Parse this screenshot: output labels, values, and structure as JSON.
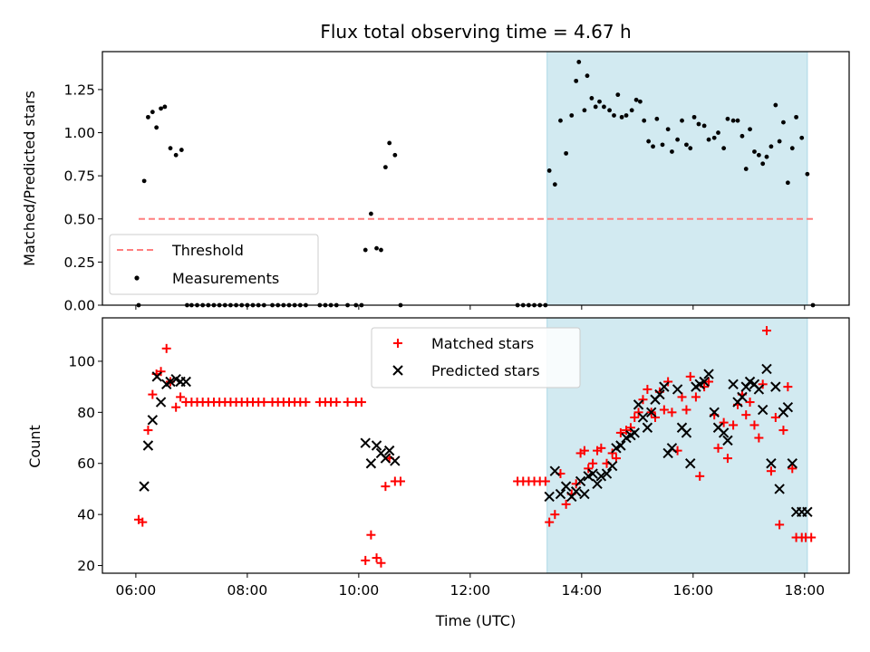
{
  "chart_data": [
    {
      "type": "scatter",
      "title": "Flux total observing time = 4.67 h",
      "xlabel": "",
      "ylabel": "Matched/Predicted stars",
      "x_unit": "UTC hour",
      "xlim": [
        5.4,
        18.8
      ],
      "ylim": [
        0.0,
        1.47
      ],
      "yticks": [
        "0.00",
        "0.25",
        "0.50",
        "0.75",
        "1.00",
        "1.25"
      ],
      "shaded_interval": [
        13.38,
        18.05
      ],
      "shade_color": "#add8e6",
      "threshold": {
        "name": "Threshold",
        "value": 0.5,
        "x": [
          6.05,
          18.15
        ],
        "color": "#ff7f7f",
        "style": "dashed"
      },
      "legend": {
        "placement": "lower-left",
        "entries": [
          "Threshold",
          "Measurements"
        ]
      },
      "series": [
        {
          "name": "Measurements",
          "color": "#000000",
          "x": [
            6.05,
            6.15,
            6.22,
            6.3,
            6.37,
            6.45,
            6.52,
            6.62,
            6.72,
            6.82,
            6.92,
            7.0,
            7.1,
            7.2,
            7.3,
            7.4,
            7.5,
            7.6,
            7.7,
            7.8,
            7.9,
            8.0,
            8.1,
            8.2,
            8.3,
            8.45,
            8.55,
            8.65,
            8.75,
            8.85,
            8.95,
            9.05,
            9.3,
            9.4,
            9.5,
            9.6,
            9.8,
            9.95,
            10.05,
            10.12,
            10.22,
            10.32,
            10.4,
            10.48,
            10.55,
            10.65,
            10.75,
            12.85,
            12.95,
            13.05,
            13.15,
            13.25,
            13.35,
            13.42,
            13.52,
            13.62,
            13.72,
            13.82,
            13.9,
            13.95,
            14.05,
            14.1,
            14.18,
            14.25,
            14.32,
            14.4,
            14.5,
            14.58,
            14.65,
            14.72,
            14.8,
            14.9,
            14.98,
            15.05,
            15.12,
            15.2,
            15.28,
            15.35,
            15.45,
            15.55,
            15.62,
            15.72,
            15.8,
            15.88,
            15.95,
            16.02,
            16.1,
            16.2,
            16.28,
            16.38,
            16.45,
            16.55,
            16.62,
            16.72,
            16.8,
            16.88,
            16.95,
            17.02,
            17.1,
            17.18,
            17.25,
            17.32,
            17.4,
            17.48,
            17.55,
            17.62,
            17.7,
            17.78,
            17.85,
            17.95,
            18.05,
            18.15
          ],
          "y": [
            0.0,
            0.72,
            1.09,
            1.12,
            1.03,
            1.14,
            1.15,
            0.91,
            0.87,
            0.9,
            0.0,
            0.0,
            0.0,
            0.0,
            0.0,
            0.0,
            0.0,
            0.0,
            0.0,
            0.0,
            0.0,
            0.0,
            0.0,
            0.0,
            0.0,
            0.0,
            0.0,
            0.0,
            0.0,
            0.0,
            0.0,
            0.0,
            0.0,
            0.0,
            0.0,
            0.0,
            0.0,
            0.0,
            0.0,
            0.32,
            0.53,
            0.33,
            0.32,
            0.8,
            0.94,
            0.87,
            0.0,
            0.0,
            0.0,
            0.0,
            0.0,
            0.0,
            0.0,
            0.78,
            0.7,
            1.07,
            0.88,
            1.1,
            1.3,
            1.41,
            1.13,
            1.33,
            1.2,
            1.15,
            1.18,
            1.15,
            1.13,
            1.1,
            1.22,
            1.09,
            1.1,
            1.13,
            1.19,
            1.18,
            1.07,
            0.95,
            0.92,
            1.08,
            0.93,
            1.02,
            0.89,
            0.96,
            1.07,
            0.93,
            0.91,
            1.09,
            1.05,
            1.04,
            0.96,
            0.97,
            1.0,
            0.91,
            1.08,
            1.07,
            1.07,
            0.98,
            0.79,
            1.02,
            0.89,
            0.87,
            0.82,
            0.86,
            0.92,
            1.16,
            0.95,
            1.06,
            0.71,
            0.91,
            1.09,
            0.97,
            0.76,
            0.0
          ]
        }
      ]
    },
    {
      "type": "scatter",
      "title": "",
      "xlabel": "Time (UTC)",
      "ylabel": "Count",
      "x_unit": "UTC hour",
      "xlim": [
        5.4,
        18.8
      ],
      "ylim": [
        17,
        117
      ],
      "yticks": [
        "20",
        "40",
        "60",
        "80",
        "100"
      ],
      "xticks": [
        "06:00",
        "08:00",
        "10:00",
        "12:00",
        "14:00",
        "16:00",
        "18:00"
      ],
      "xtick_values": [
        6,
        8,
        10,
        12,
        14,
        16,
        18
      ],
      "shaded_interval": [
        13.38,
        18.05
      ],
      "shade_color": "#add8e6",
      "legend": {
        "placement": "top-center",
        "entries": [
          "Matched stars",
          "Predicted stars"
        ]
      },
      "series": [
        {
          "name": "Matched stars",
          "marker": "plus",
          "color": "#ff0000",
          "x": [
            6.05,
            6.12,
            6.22,
            6.3,
            6.37,
            6.45,
            6.55,
            6.62,
            6.72,
            6.8,
            6.9,
            7.0,
            7.1,
            7.2,
            7.3,
            7.4,
            7.5,
            7.6,
            7.7,
            7.8,
            7.9,
            8.0,
            8.1,
            8.2,
            8.3,
            8.45,
            8.55,
            8.65,
            8.75,
            8.85,
            8.95,
            9.05,
            9.3,
            9.4,
            9.5,
            9.6,
            9.8,
            9.95,
            10.05,
            10.12,
            10.22,
            10.32,
            10.4,
            10.48,
            10.55,
            10.65,
            10.75,
            12.85,
            12.95,
            13.05,
            13.15,
            13.25,
            13.35,
            13.42,
            13.52,
            13.62,
            13.72,
            13.82,
            13.9,
            13.98,
            14.05,
            14.12,
            14.2,
            14.28,
            14.35,
            14.45,
            14.55,
            14.62,
            14.7,
            14.8,
            14.88,
            14.95,
            15.02,
            15.1,
            15.18,
            15.25,
            15.32,
            15.4,
            15.48,
            15.55,
            15.62,
            15.72,
            15.8,
            15.88,
            15.95,
            16.05,
            16.12,
            16.2,
            16.28,
            16.38,
            16.45,
            16.55,
            16.62,
            16.72,
            16.8,
            16.88,
            16.95,
            17.02,
            17.1,
            17.18,
            17.25,
            17.32,
            17.4,
            17.48,
            17.55,
            17.62,
            17.7,
            17.78,
            17.85,
            17.95,
            18.02,
            18.12
          ],
          "y": [
            38,
            37,
            73,
            87,
            95,
            96,
            105,
            92,
            82,
            86,
            84,
            84,
            84,
            84,
            84,
            84,
            84,
            84,
            84,
            84,
            84,
            84,
            84,
            84,
            84,
            84,
            84,
            84,
            84,
            84,
            84,
            84,
            84,
            84,
            84,
            84,
            84,
            84,
            84,
            22,
            32,
            23,
            21,
            51,
            62,
            53,
            53,
            53,
            53,
            53,
            53,
            53,
            53,
            37,
            40,
            56,
            44,
            48,
            52,
            64,
            65,
            58,
            60,
            65,
            66,
            60,
            64,
            62,
            72,
            73,
            74,
            78,
            80,
            85,
            89,
            80,
            78,
            88,
            81,
            92,
            80,
            65,
            86,
            81,
            94,
            86,
            55,
            90,
            92,
            79,
            66,
            76,
            62,
            75,
            83,
            87,
            79,
            84,
            75,
            70,
            91,
            112,
            57,
            78,
            36,
            73,
            90,
            58,
            31,
            31,
            31,
            31
          ],
          "note": ""
        },
        {
          "name": "Predicted stars",
          "marker": "x",
          "color": "#000000",
          "x": [
            6.15,
            6.22,
            6.3,
            6.38,
            6.45,
            6.55,
            6.62,
            6.72,
            6.8,
            6.9,
            10.12,
            10.22,
            10.32,
            10.4,
            10.48,
            10.55,
            10.65,
            13.42,
            13.52,
            13.62,
            13.72,
            13.82,
            13.9,
            13.98,
            14.05,
            14.12,
            14.2,
            14.28,
            14.35,
            14.45,
            14.55,
            14.62,
            14.7,
            14.8,
            14.88,
            14.95,
            15.02,
            15.1,
            15.18,
            15.25,
            15.32,
            15.4,
            15.48,
            15.55,
            15.62,
            15.72,
            15.8,
            15.88,
            15.95,
            16.05,
            16.12,
            16.2,
            16.28,
            16.38,
            16.45,
            16.55,
            16.62,
            16.72,
            16.8,
            16.88,
            16.95,
            17.02,
            17.1,
            17.18,
            17.25,
            17.32,
            17.4,
            17.48,
            17.55,
            17.62,
            17.7,
            17.78,
            17.85,
            17.95,
            18.05
          ],
          "y": [
            51,
            67,
            77,
            94,
            84,
            91,
            92,
            93,
            92,
            92,
            68,
            60,
            67,
            64,
            62,
            65,
            61,
            47,
            57,
            48,
            51,
            47,
            49,
            53,
            48,
            55,
            56,
            52,
            55,
            56,
            59,
            66,
            67,
            70,
            71,
            72,
            83,
            78,
            74,
            80,
            85,
            87,
            90,
            64,
            66,
            89,
            74,
            72,
            60,
            90,
            91,
            92,
            95,
            80,
            74,
            72,
            69,
            91,
            84,
            86,
            90,
            92,
            91,
            89,
            81,
            97,
            60,
            90,
            50,
            80,
            82,
            60,
            41,
            41,
            41
          ],
          "note": ""
        }
      ]
    }
  ]
}
